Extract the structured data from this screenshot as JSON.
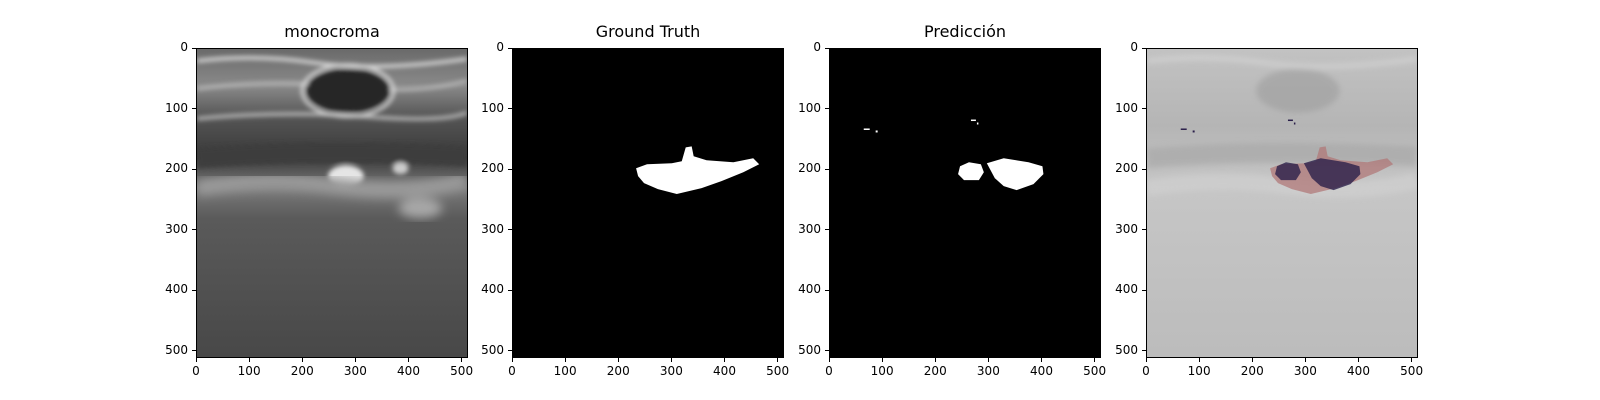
{
  "panels": [
    {
      "title": "monocroma",
      "image": "grayscale ultrasound"
    },
    {
      "title": "Ground Truth",
      "image": "binary segmentation mask"
    },
    {
      "title": "Predicción",
      "image": "predicted segmentation mask"
    },
    {
      "title": "",
      "image": "overlay of ultrasound with masks"
    }
  ],
  "axes": {
    "x_ticks": [
      "0",
      "100",
      "200",
      "300",
      "400",
      "500"
    ],
    "y_ticks": [
      "0",
      "100",
      "200",
      "300",
      "400",
      "500"
    ],
    "x_range": [
      0,
      512
    ],
    "y_range": [
      0,
      512
    ]
  },
  "colors": {
    "mask_fill": "#ffffff",
    "background": "#000000",
    "overlay_gt": "#b07878",
    "overlay_pred": "#2a1f4a"
  }
}
